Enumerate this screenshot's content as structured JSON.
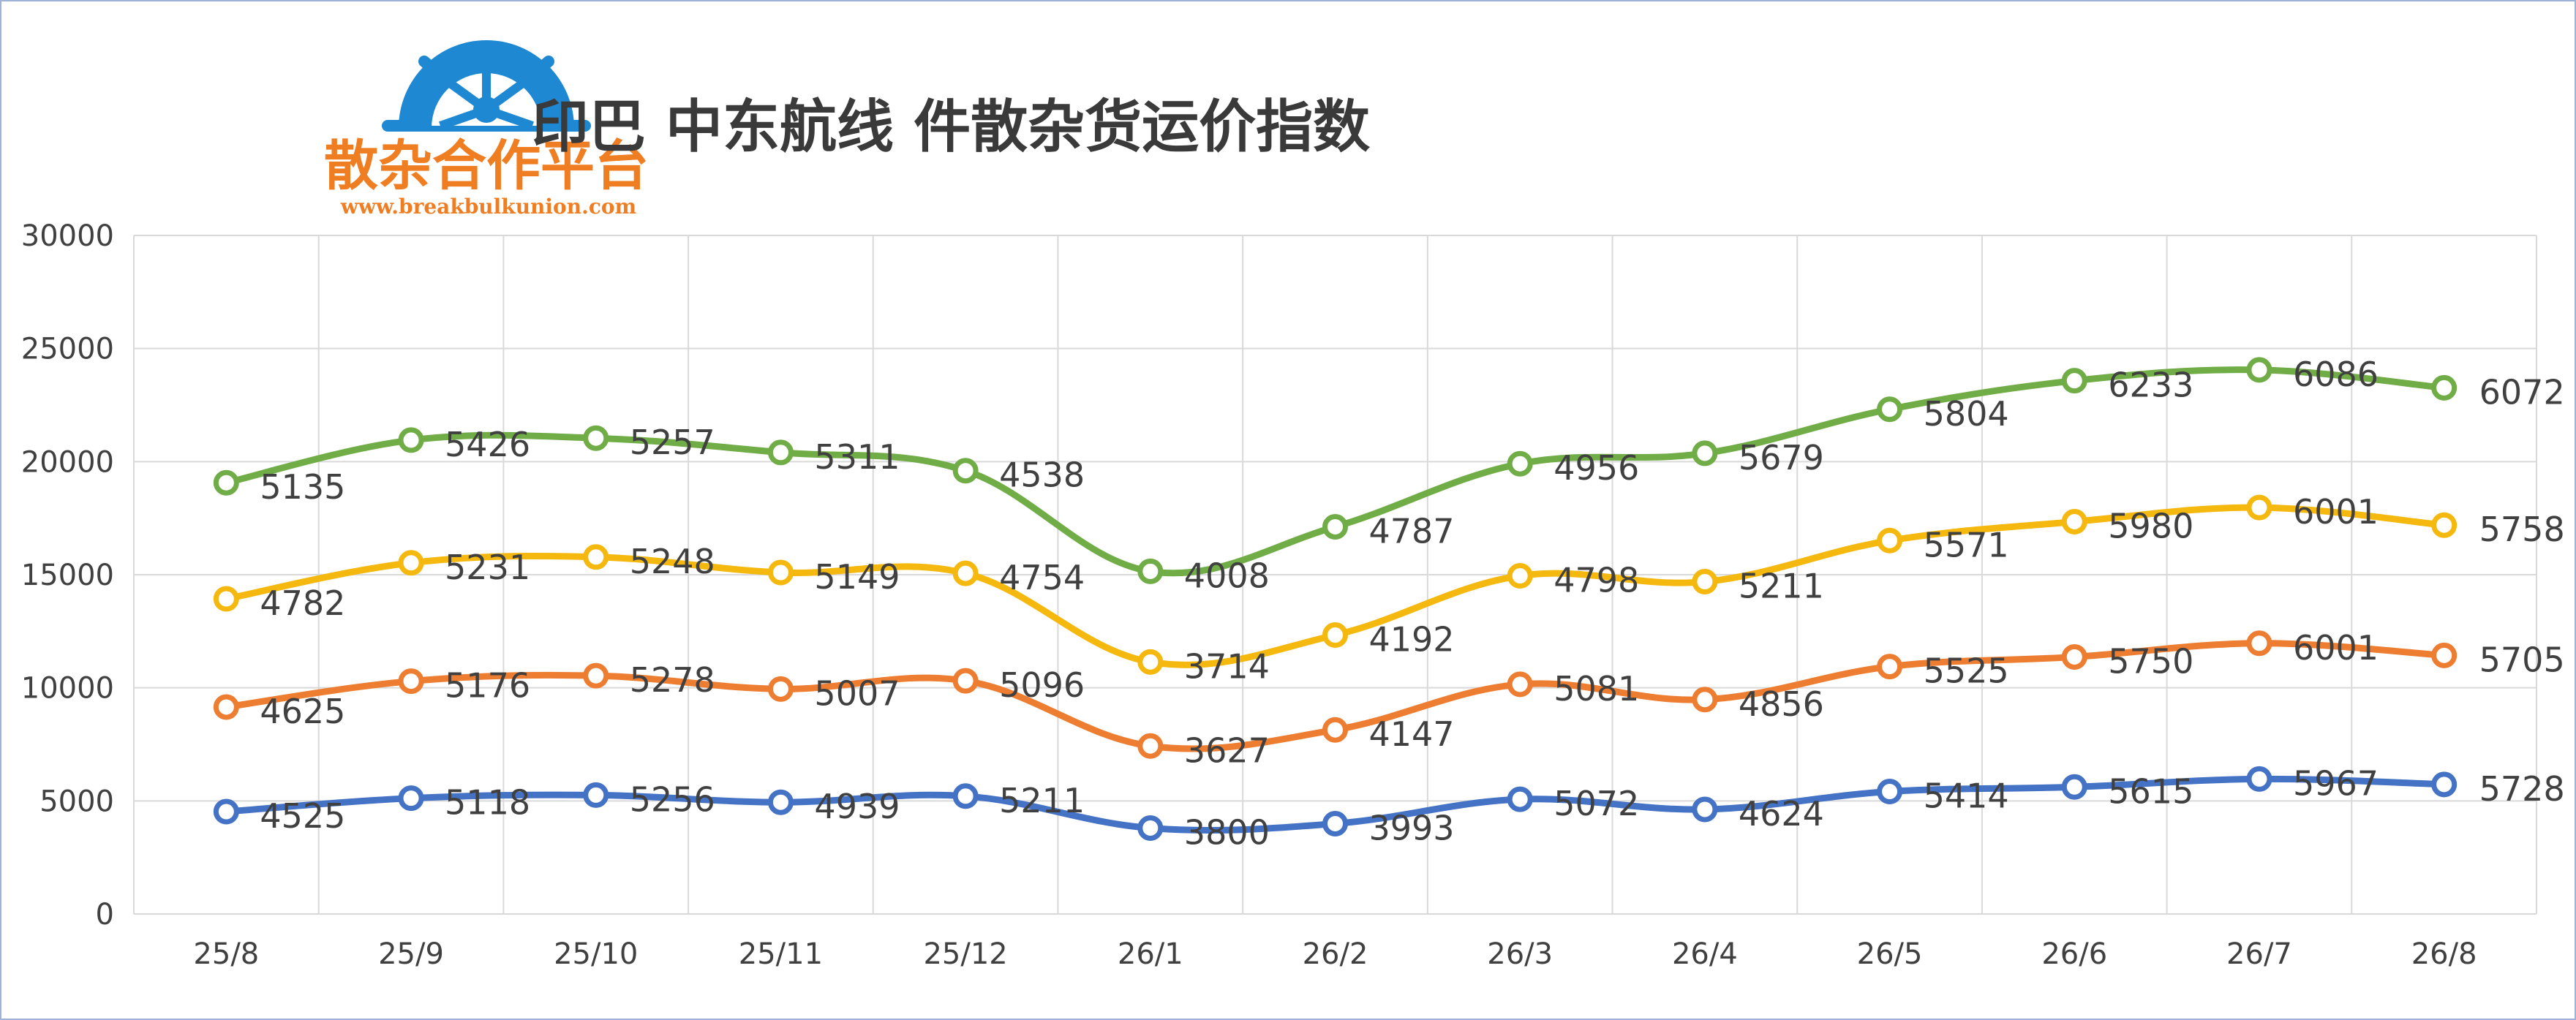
{
  "logo": {
    "name": "散杂合作平台",
    "url": "www.breakbulkunion.com",
    "color": "#ef7d22",
    "wheel_color": "#1e88d2"
  },
  "chart_data": {
    "type": "line",
    "title": "印巴 中东航线 件散杂货运价指数",
    "xlabel": "",
    "ylabel": "",
    "categories": [
      "25/8",
      "25/9",
      "25/10",
      "25/11",
      "25/12",
      "26/1",
      "26/2",
      "26/3",
      "26/4",
      "26/5",
      "26/6",
      "26/7",
      "26/8"
    ],
    "ylim": [
      0,
      30000
    ],
    "yticks": [
      "0",
      "5000",
      "10000",
      "15000",
      "20000",
      "25000",
      "30000"
    ],
    "grid": true,
    "stacked": true,
    "series": [
      {
        "color": "#4472c4",
        "values": [
          4525,
          5118,
          5256,
          4939,
          5211,
          3800,
          3993,
          5072,
          4624,
          5414,
          5615,
          5967,
          5728
        ]
      },
      {
        "color": "#ed7d31",
        "values": [
          4625,
          5176,
          5278,
          5007,
          5096,
          3627,
          4147,
          5081,
          4856,
          5525,
          5750,
          6001,
          5705
        ]
      },
      {
        "color": "#f4b80f",
        "values": [
          4782,
          5231,
          5248,
          5149,
          4754,
          3714,
          4192,
          4798,
          5211,
          5571,
          5980,
          6001,
          5758
        ]
      },
      {
        "color": "#70ad47",
        "values": [
          5135,
          5426,
          5257,
          5311,
          4538,
          4008,
          4787,
          4956,
          5679,
          5804,
          6233,
          6086,
          6072
        ]
      }
    ]
  }
}
